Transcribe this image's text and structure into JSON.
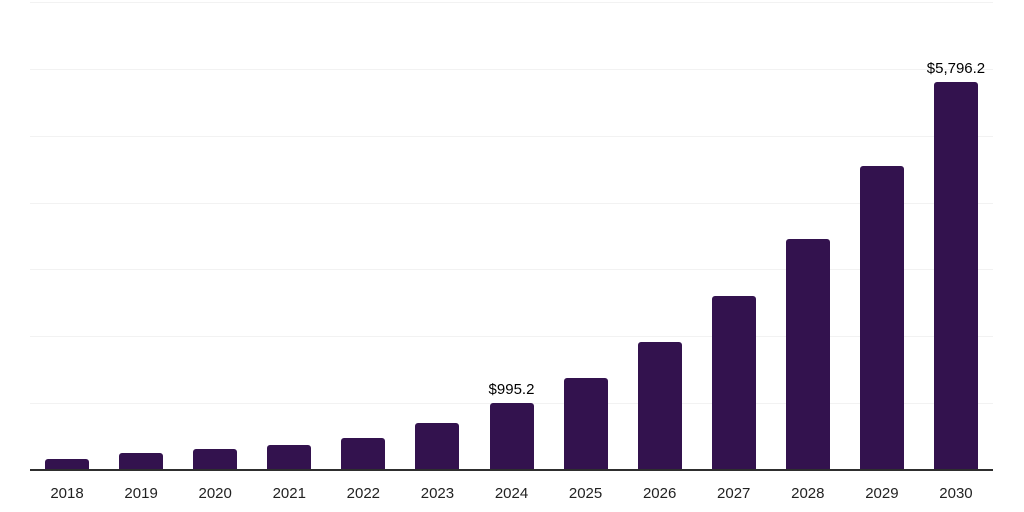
{
  "chart_data": {
    "type": "bar",
    "title": "",
    "xlabel": "",
    "ylabel": "",
    "categories": [
      "2018",
      "2019",
      "2020",
      "2021",
      "2022",
      "2023",
      "2024",
      "2025",
      "2026",
      "2027",
      "2028",
      "2029",
      "2030"
    ],
    "values": [
      160,
      260,
      310,
      375,
      485,
      710,
      995.2,
      1380,
      1910,
      2600,
      3460,
      4540,
      5796.2
    ],
    "data_labels": [
      "",
      "",
      "",
      "",
      "",
      "",
      "$995.2",
      "",
      "",
      "",
      "",
      "",
      "$5,796.2"
    ],
    "ylim": [
      0,
      7000
    ],
    "grid_step": 1000,
    "grid": "horizontal-only",
    "legend": "none",
    "colors": {
      "bar": "#33124E",
      "grid": "#F2F2F2",
      "axis": "#2E2E2E",
      "tick_label": "#222222",
      "data_label": "#000000",
      "background": "#FFFFFF"
    }
  }
}
